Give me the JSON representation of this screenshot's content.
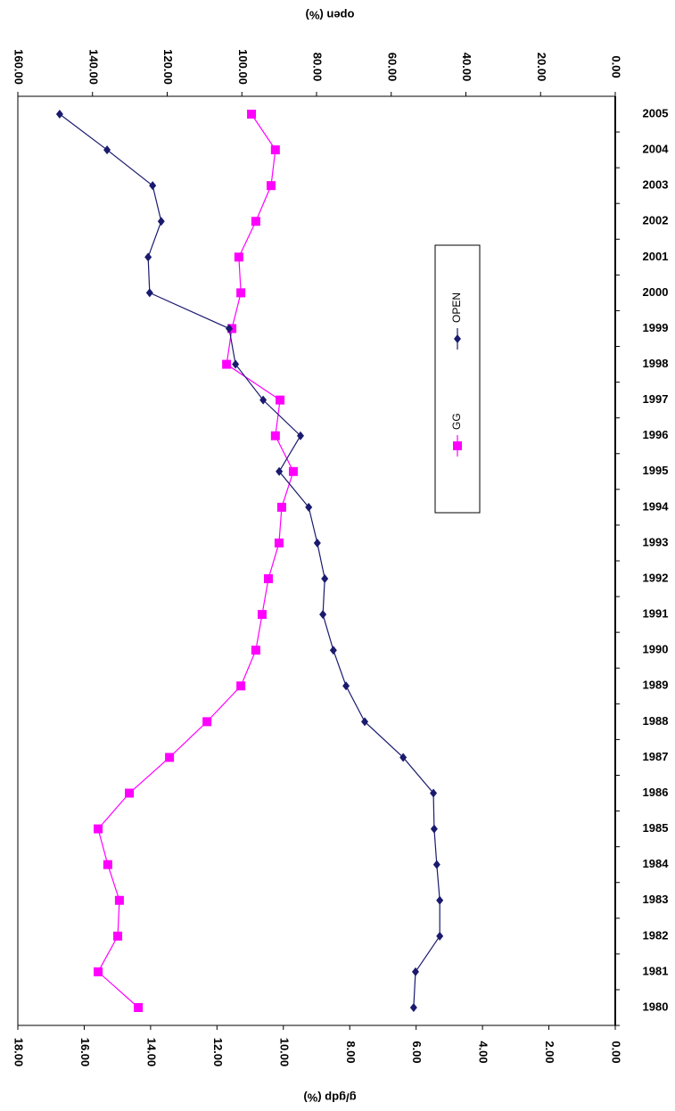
{
  "chart_data": {
    "type": "line",
    "x_label": "open (%)",
    "y_label": "g/gdp (%)",
    "categories": [
      "1980",
      "1981",
      "1982",
      "1983",
      "1984",
      "1985",
      "1986",
      "1987",
      "1988",
      "1989",
      "1990",
      "1991",
      "1992",
      "1993",
      "1994",
      "1995",
      "1996",
      "1997",
      "1998",
      "1999",
      "2000",
      "2001",
      "2002",
      "2003",
      "2004",
      "2005"
    ],
    "series": [
      {
        "name": "GG",
        "color": "#ff00ff",
        "marker": "square",
        "values": [
          14.37,
          15.58,
          14.99,
          14.94,
          15.29,
          15.58,
          14.64,
          13.43,
          12.3,
          11.28,
          10.83,
          10.64,
          10.45,
          10.13,
          10.05,
          9.7,
          10.24,
          10.1,
          11.71,
          11.55,
          11.28,
          11.34,
          10.83,
          10.37,
          10.24,
          10.96
        ]
      },
      {
        "name": "OPEN",
        "color": "#1a1a6e",
        "marker": "diamond",
        "axis": "y2",
        "values": [
          54.0,
          53.5,
          47.0,
          47.0,
          47.8,
          48.5,
          48.7,
          56.8,
          67.1,
          72.1,
          75.5,
          78.3,
          77.8,
          79.8,
          82.1,
          90.0,
          84.3,
          94.3,
          101.7,
          103.4,
          124.7,
          125.1,
          121.6,
          123.9,
          136.1,
          148.8
        ]
      }
    ],
    "ylim": [
      0,
      18
    ],
    "yticks": [
      {
        "value": 0,
        "label": "0.00"
      },
      {
        "value": 2,
        "label": "2.00"
      },
      {
        "value": 4,
        "label": "4.00"
      },
      {
        "value": 6,
        "label": "6.00"
      },
      {
        "value": 8,
        "label": "8.00"
      },
      {
        "value": 10,
        "label": "10.00"
      },
      {
        "value": 12,
        "label": "12.00"
      },
      {
        "value": 14,
        "label": "14.00"
      },
      {
        "value": 16,
        "label": "16.00"
      },
      {
        "value": 18,
        "label": "18.00"
      }
    ],
    "y2lim": [
      0,
      160
    ],
    "y2ticks": [
      {
        "value": 0,
        "label": "0.00"
      },
      {
        "value": 20,
        "label": "20.00"
      },
      {
        "value": 40,
        "label": "40.00"
      },
      {
        "value": 60,
        "label": "60.00"
      },
      {
        "value": 80,
        "label": "80.00"
      },
      {
        "value": 100,
        "label": "100.00"
      },
      {
        "value": 120,
        "label": "120.00"
      },
      {
        "value": 140,
        "label": "140.00"
      },
      {
        "value": 160,
        "label": "160.00"
      }
    ]
  }
}
